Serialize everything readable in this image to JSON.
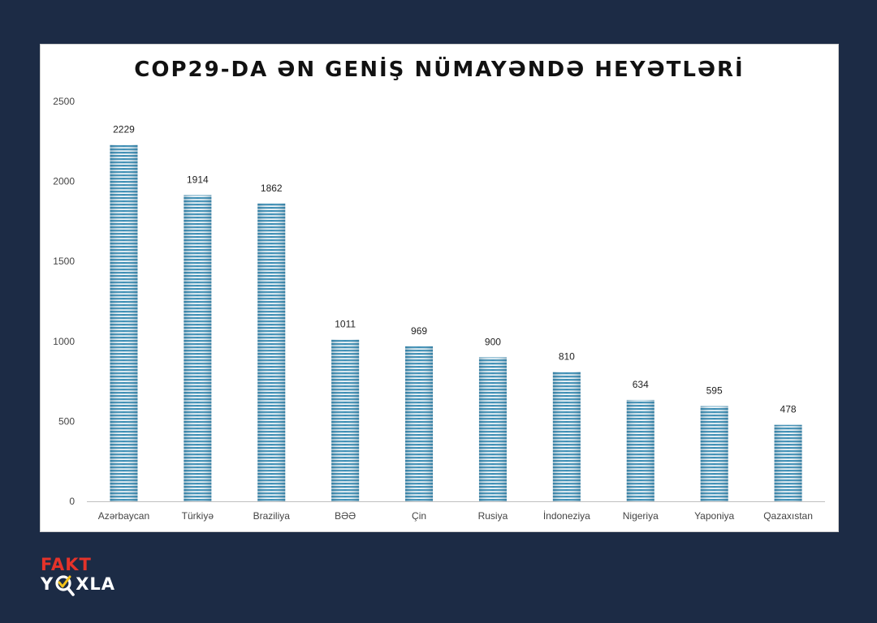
{
  "chart_data": {
    "type": "bar",
    "title": "COP29-DA ƏN GENİŞ NÜMAYƏNDƏ HEYƏTLƏRİ",
    "categories": [
      "Azərbaycan",
      "Türkiyə",
      "Braziliya",
      "BƏƏ",
      "Çin",
      "Rusiya",
      "İndoneziya",
      "Nigeriya",
      "Yaponiya",
      "Qazaxıstan"
    ],
    "values": [
      2229,
      1914,
      1862,
      1011,
      969,
      900,
      810,
      634,
      595,
      478
    ],
    "ylim": [
      0,
      2500
    ],
    "yticks": [
      0,
      500,
      1000,
      1500,
      2000,
      2500
    ],
    "grid": false,
    "bar_color": "#3f8fb5"
  },
  "logo": {
    "line1": "FAKT",
    "line2_before": "Y",
    "line2_after": "XLA"
  }
}
